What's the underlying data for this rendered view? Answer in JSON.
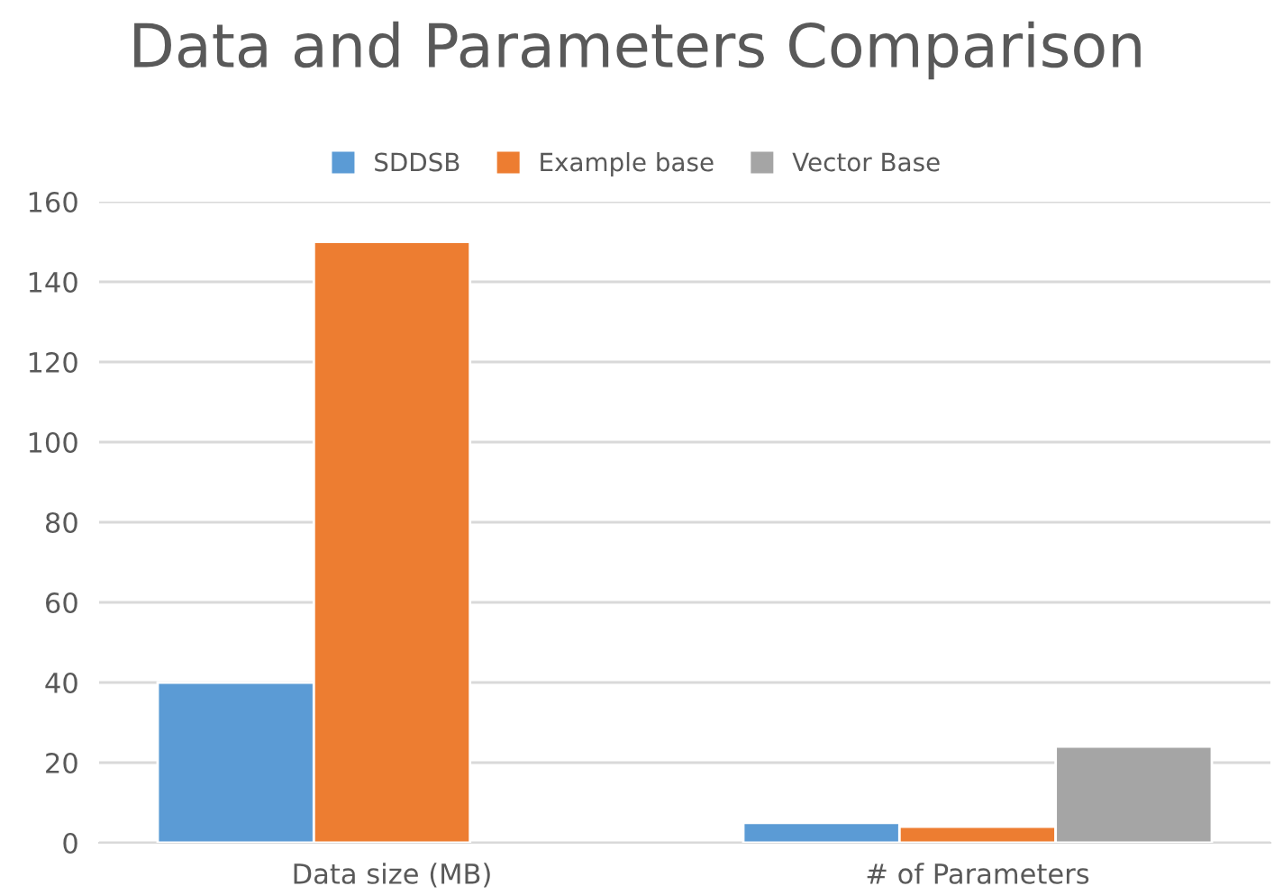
{
  "chart_data": {
    "type": "bar",
    "title": "Data and Parameters Comparison",
    "categories": [
      "Data size (MB)",
      "# of Parameters"
    ],
    "series": [
      {
        "name": "SDDSB",
        "color": "#5b9bd5",
        "values": [
          40,
          5
        ]
      },
      {
        "name": "Example base",
        "color": "#ed7d31",
        "values": [
          150,
          4
        ]
      },
      {
        "name": "Vector Base",
        "color": "#a5a5a5",
        "values": [
          null,
          24
        ]
      }
    ],
    "ylim": [
      0,
      160
    ],
    "yticks": [
      0,
      20,
      40,
      60,
      80,
      100,
      120,
      140,
      160
    ],
    "grid": "y",
    "legend": "top"
  }
}
